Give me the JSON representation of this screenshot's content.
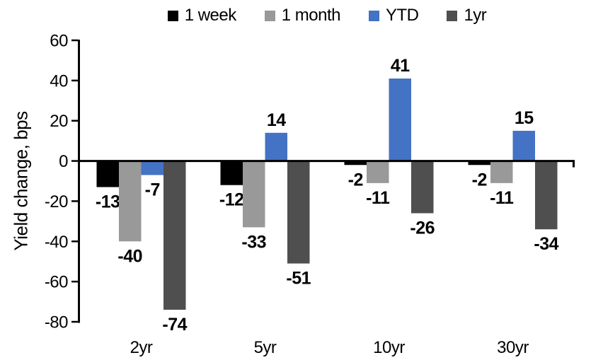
{
  "chart_data": {
    "type": "bar",
    "categories": [
      "2yr",
      "5yr",
      "10yr",
      "30yr"
    ],
    "series": [
      {
        "name": "1 week",
        "color": "#000000",
        "values": [
          -13,
          -12,
          -2,
          -2
        ]
      },
      {
        "name": "1 month",
        "color": "#999999",
        "values": [
          -40,
          -33,
          -11,
          -11
        ]
      },
      {
        "name": "YTD",
        "color": "#4472C4",
        "values": [
          -7,
          14,
          41,
          15
        ]
      },
      {
        "name": "1yr",
        "color": "#4F4F4F",
        "values": [
          -74,
          -51,
          -26,
          -34
        ]
      }
    ],
    "ylabel": "Yield change, bps",
    "ylim": [
      -80,
      60
    ],
    "yticks": [
      60,
      40,
      20,
      0,
      -20,
      -40,
      -60,
      -80
    ],
    "legend_position": "top",
    "grid": false,
    "data_labels": true,
    "axis_color": "#000000"
  }
}
